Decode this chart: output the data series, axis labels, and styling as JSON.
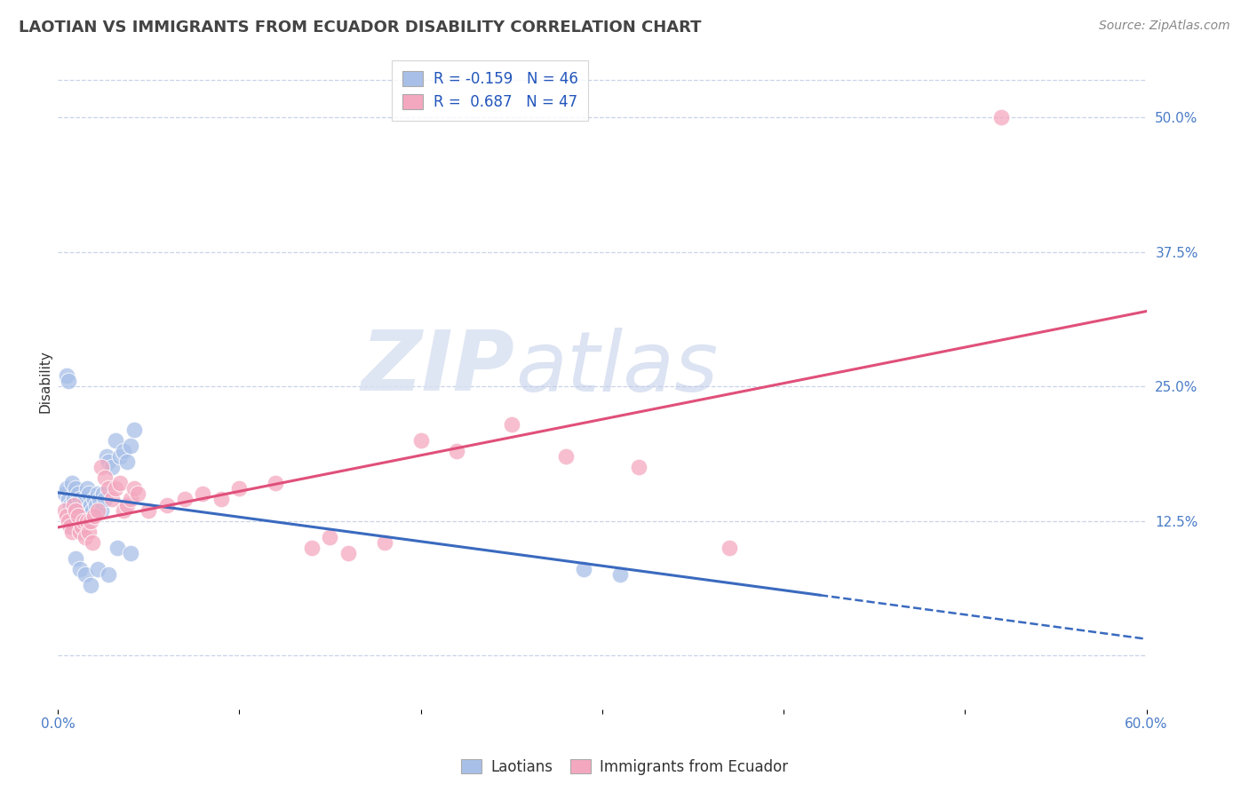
{
  "title": "LAOTIAN VS IMMIGRANTS FROM ECUADOR DISABILITY CORRELATION CHART",
  "source": "Source: ZipAtlas.com",
  "ylabel": "Disability",
  "xlim": [
    0.0,
    0.6
  ],
  "ylim": [
    -0.05,
    0.56
  ],
  "ytick_positions": [
    0.0,
    0.125,
    0.25,
    0.375,
    0.5
  ],
  "ytick_labels": [
    "",
    "12.5%",
    "25.0%",
    "37.5%",
    "50.0%"
  ],
  "background_color": "#ffffff",
  "grid_color": "#c8d4e8",
  "laotian_color": "#a8c0e8",
  "ecuador_color": "#f4a8c0",
  "laotian_R": -0.159,
  "laotian_N": 46,
  "ecuador_R": 0.687,
  "ecuador_N": 47,
  "laotian_line_color": "#3a6abf",
  "ecuador_line_color": "#e0507a",
  "laotian_scatter_x": [
    0.004,
    0.005,
    0.006,
    0.007,
    0.008,
    0.009,
    0.01,
    0.011,
    0.012,
    0.013,
    0.014,
    0.015,
    0.016,
    0.017,
    0.018,
    0.019,
    0.02,
    0.021,
    0.022,
    0.023,
    0.024,
    0.025,
    0.026,
    0.027,
    0.028,
    0.03,
    0.032,
    0.034,
    0.036,
    0.038,
    0.04,
    0.042,
    0.005,
    0.006,
    0.007,
    0.008,
    0.01,
    0.012,
    0.015,
    0.018,
    0.022,
    0.028,
    0.033,
    0.04,
    0.29,
    0.31
  ],
  "laotian_scatter_y": [
    0.15,
    0.155,
    0.145,
    0.14,
    0.16,
    0.145,
    0.155,
    0.15,
    0.145,
    0.14,
    0.135,
    0.145,
    0.155,
    0.15,
    0.14,
    0.135,
    0.145,
    0.14,
    0.15,
    0.145,
    0.135,
    0.15,
    0.145,
    0.185,
    0.18,
    0.175,
    0.2,
    0.185,
    0.19,
    0.18,
    0.195,
    0.21,
    0.26,
    0.255,
    0.12,
    0.125,
    0.09,
    0.08,
    0.075,
    0.065,
    0.08,
    0.075,
    0.1,
    0.095,
    0.08,
    0.075
  ],
  "ecuador_scatter_x": [
    0.004,
    0.005,
    0.006,
    0.007,
    0.008,
    0.009,
    0.01,
    0.011,
    0.012,
    0.013,
    0.014,
    0.015,
    0.016,
    0.017,
    0.018,
    0.019,
    0.02,
    0.022,
    0.024,
    0.026,
    0.028,
    0.03,
    0.032,
    0.034,
    0.036,
    0.038,
    0.04,
    0.042,
    0.044,
    0.05,
    0.06,
    0.07,
    0.08,
    0.09,
    0.1,
    0.12,
    0.14,
    0.15,
    0.16,
    0.18,
    0.2,
    0.22,
    0.25,
    0.28,
    0.32,
    0.37,
    0.52
  ],
  "ecuador_scatter_y": [
    0.135,
    0.13,
    0.125,
    0.12,
    0.115,
    0.14,
    0.135,
    0.13,
    0.115,
    0.12,
    0.125,
    0.11,
    0.125,
    0.115,
    0.125,
    0.105,
    0.13,
    0.135,
    0.175,
    0.165,
    0.155,
    0.145,
    0.155,
    0.16,
    0.135,
    0.14,
    0.145,
    0.155,
    0.15,
    0.135,
    0.14,
    0.145,
    0.15,
    0.145,
    0.155,
    0.16,
    0.1,
    0.11,
    0.095,
    0.105,
    0.2,
    0.19,
    0.215,
    0.185,
    0.175,
    0.1,
    0.5
  ],
  "watermark_zip": "ZIP",
  "watermark_atlas": "atlas"
}
